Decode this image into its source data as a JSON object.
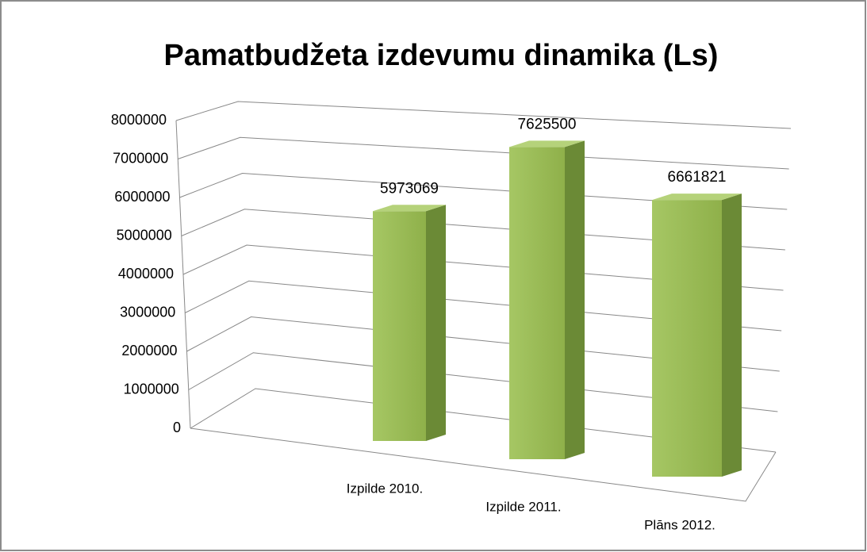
{
  "chart_data": {
    "type": "bar3d",
    "title": "Pamatbudžeta izdevumu dinamika (Ls)",
    "categories": [
      "Izpilde 2010.",
      "Izpilde 2011.",
      "Plāns 2012."
    ],
    "values": [
      5973069,
      7625500,
      6661821
    ],
    "color": "#9bbb59",
    "ylim": [
      0,
      8000000
    ],
    "yticks": [
      0,
      1000000,
      2000000,
      3000000,
      4000000,
      5000000,
      6000000,
      7000000,
      8000000
    ],
    "grid": true
  }
}
